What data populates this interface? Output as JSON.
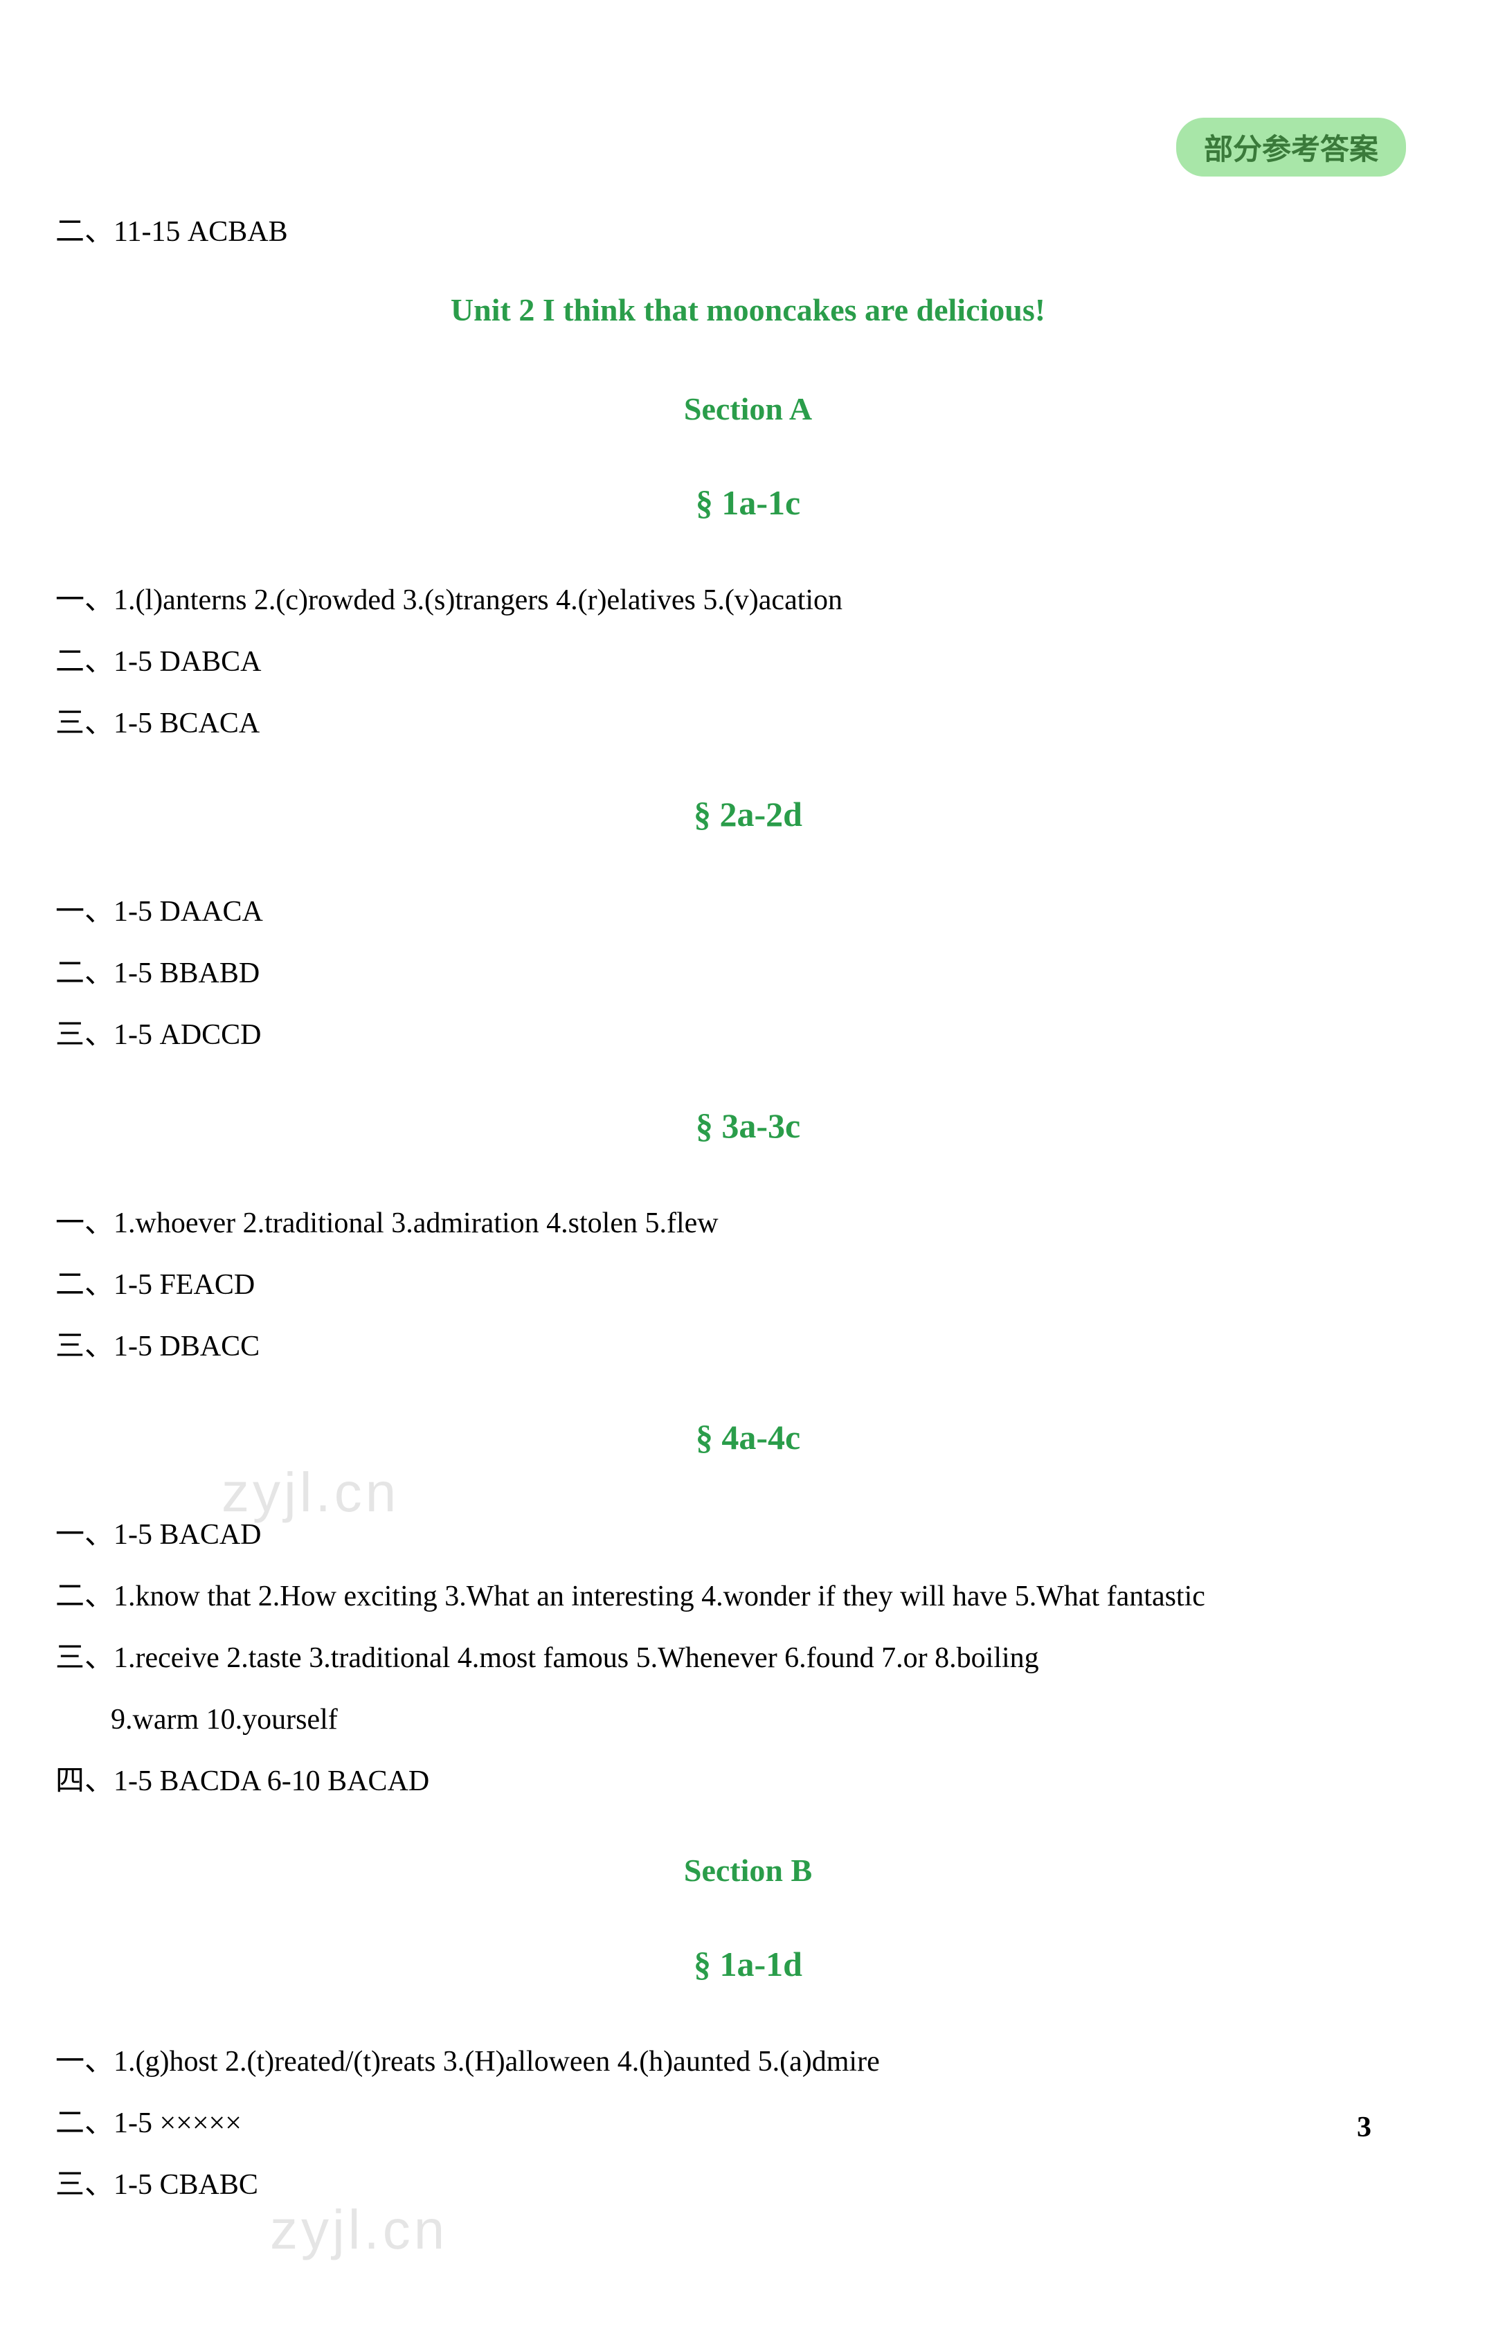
{
  "header": {
    "badge": "部分参考答案"
  },
  "topLine": "二、11-15 ACBAB",
  "unitTitle": "Unit 2   I think that mooncakes are delicious!",
  "sectionA": {
    "title": "Section A",
    "s1": {
      "title": "§ 1a-1c",
      "line1": "一、1.(l)anterns   2.(c)rowded   3.(s)trangers   4.(r)elatives   5.(v)acation",
      "line2": "二、1-5 DABCA",
      "line3": "三、1-5 BCACA"
    },
    "s2": {
      "title": "§ 2a-2d",
      "line1": "一、1-5 DAACA",
      "line2": "二、1-5 BBABD",
      "line3": "三、1-5 ADCCD"
    },
    "s3": {
      "title": "§ 3a-3c",
      "line1": "一、1.whoever   2.traditional   3.admiration   4.stolen   5.flew",
      "line2": "二、1-5 FEACD",
      "line3": "三、1-5 DBACC"
    },
    "s4": {
      "title": "§ 4a-4c",
      "line1": "一、1-5 BACAD",
      "line2": "二、1.know that   2.How exciting   3.What an interesting   4.wonder if they will have   5.What fantastic",
      "line3": "三、1.receive   2.taste   3.traditional   4.most famous   5.Whenever   6.found   7.or   8.boiling",
      "line3b": "9.warm   10.yourself",
      "line4": "四、1-5 BACDA   6-10 BACAD"
    }
  },
  "sectionB": {
    "title": "Section B",
    "s1": {
      "title": "§ 1a-1d",
      "line1": "一、1.(g)host   2.(t)reated/(t)reats   3.(H)alloween   4.(h)aunted   5.(a)dmire",
      "line2": "二、1-5 ×××××",
      "line3": "三、1-5 CBABC"
    }
  },
  "pageNumber": "3",
  "watermark": "zyjl.cn"
}
